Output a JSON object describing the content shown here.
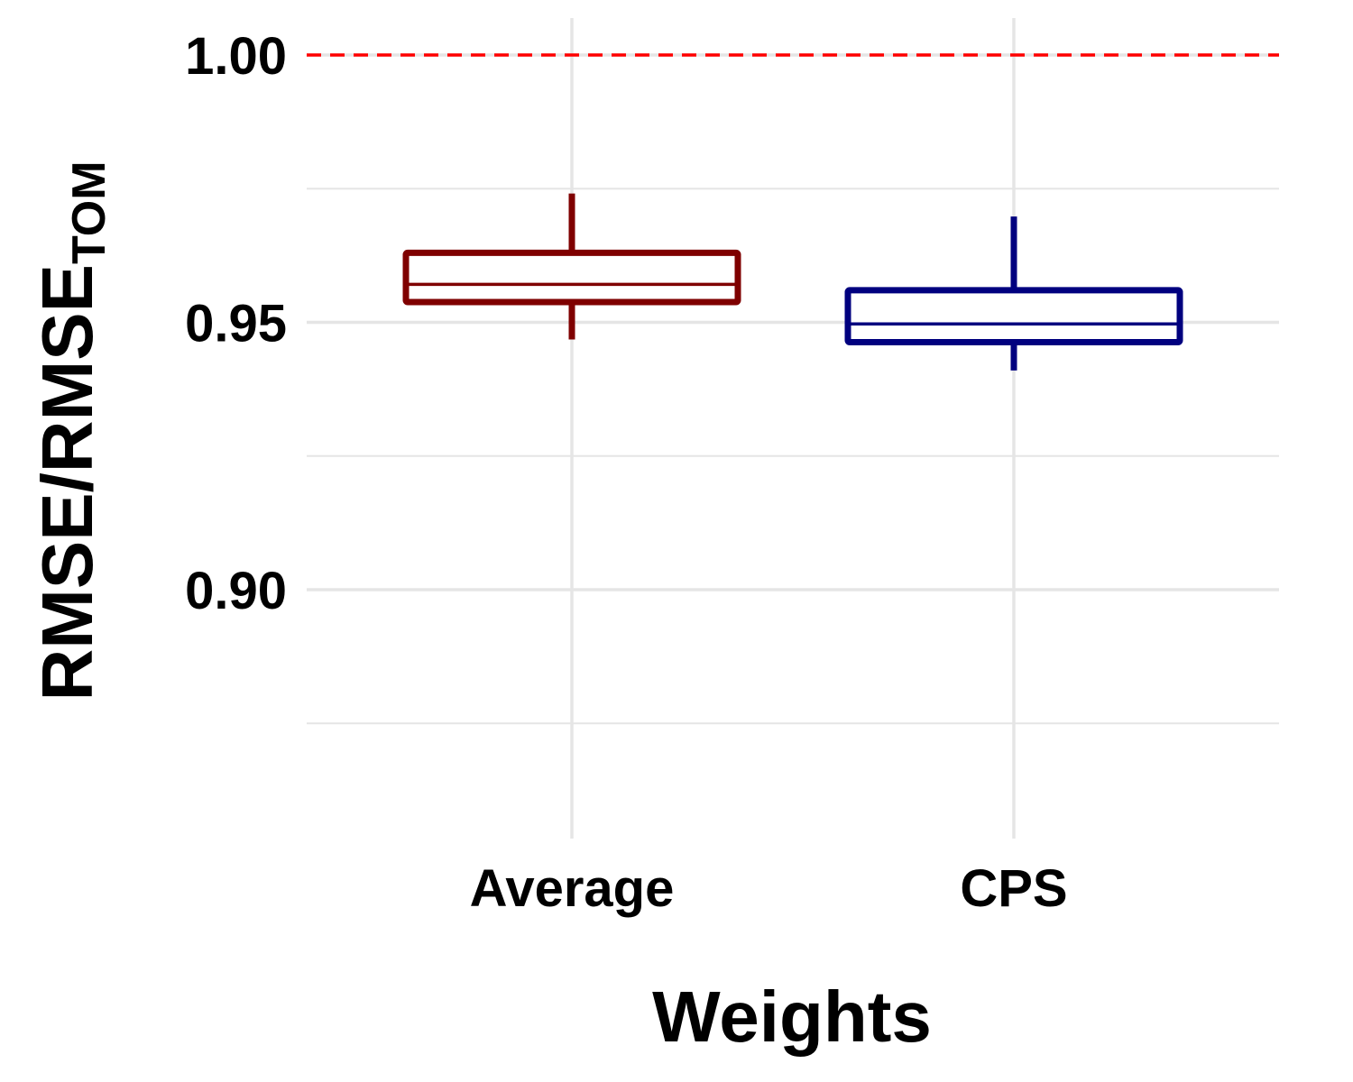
{
  "chart_data": {
    "type": "box",
    "xlabel": "Weights",
    "ylabel_main": "RMSE/RMSE",
    "ylabel_sub": "TOM",
    "ylim": [
      0.875,
      1.007
    ],
    "y_ticks": [
      {
        "value": 0.9,
        "label": "0.90"
      },
      {
        "value": 0.95,
        "label": "0.95"
      },
      {
        "value": 1.0,
        "label": "1.00"
      }
    ],
    "y_minor_gridlines": [
      0.875,
      0.925,
      0.975
    ],
    "reference_line": {
      "value": 1.0,
      "style": "dashed",
      "color": "#ff0000"
    },
    "categories": [
      "Average",
      "CPS"
    ],
    "boxes": [
      {
        "name": "Average",
        "color": "#7f0000",
        "whisker_low": 0.9468,
        "q1": 0.9538,
        "median": 0.9571,
        "q3": 0.963,
        "whisker_high": 0.9741
      },
      {
        "name": "CPS",
        "color": "#00007f",
        "whisker_low": 0.941,
        "q1": 0.9463,
        "median": 0.9497,
        "q3": 0.956,
        "whisker_high": 0.9698
      }
    ],
    "grid": true,
    "gridline_color": "#e5e5e5"
  }
}
